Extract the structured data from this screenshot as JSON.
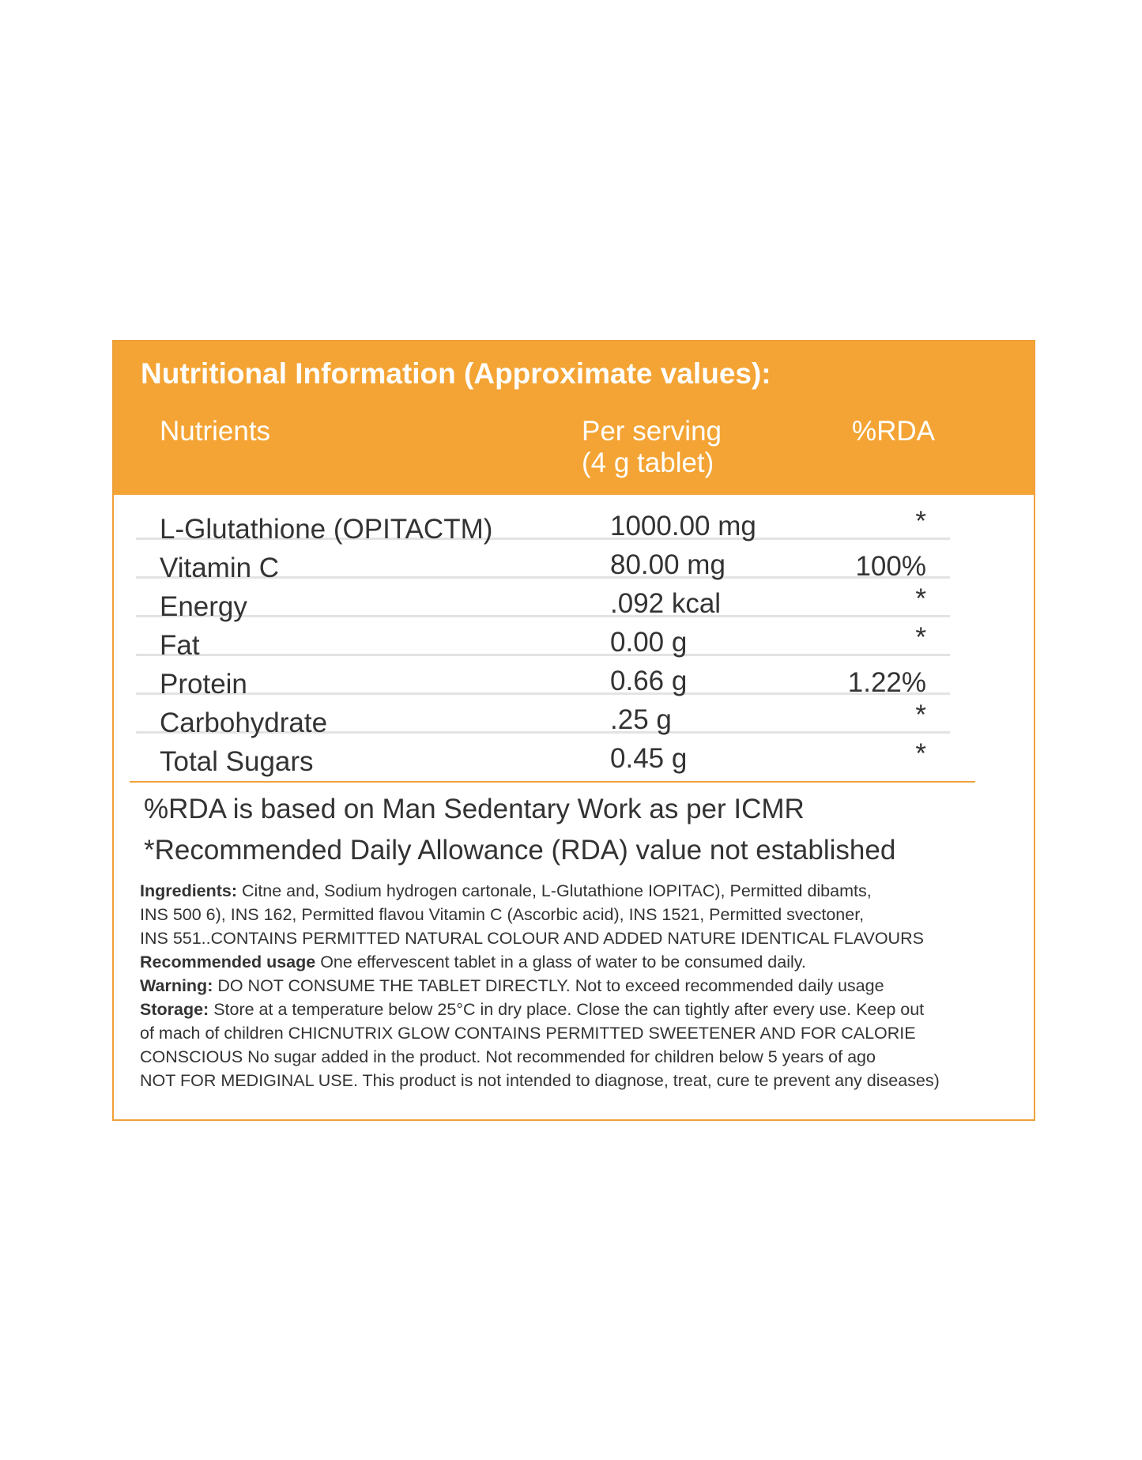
{
  "title": "Nutritional Information (Approximate values):",
  "columns": {
    "nutrients": "Nutrients",
    "per_serving_line1": "Per serving",
    "per_serving_line2": "(4 g tablet)",
    "rda": "%RDA"
  },
  "rows": [
    {
      "name": "L-Glutathione (OPITACTM)",
      "value": "1000.00 mg",
      "rda": "*"
    },
    {
      "name": "Vitamin C",
      "value": "80.00 mg",
      "rda": "100%"
    },
    {
      "name": "Energy",
      "value": ".092 kcal",
      "rda": "*"
    },
    {
      "name": "Fat",
      "value": "0.00 g",
      "rda": "*"
    },
    {
      "name": "Protein",
      "value": "0.66 g",
      "rda": "1.22%"
    },
    {
      "name": "Carbohydrate",
      "value": ".25 g",
      "rda": "*"
    },
    {
      "name": "Total Sugars",
      "value": "0.45 g",
      "rda": "*"
    }
  ],
  "notes": {
    "rda_basis": "%RDA is based on Man Sedentary Work as per ICMR",
    "rda_not_established": "*Recommended Daily Allowance (RDA) value not established"
  },
  "fine_print": {
    "ingredients_label": "Ingredients:",
    "ingredients_line1": " Citne and, Sodium hydrogen cartonale, L-Glutathione IOPITAC), Permitted dibamts,",
    "ingredients_line2": " INS 500 6), INS 162, Permitted flavou Vitamin C (Ascorbic acid), INS 1521, Permitted svectoner,",
    "ingredients_line3": "INS 551..CONTAINS PERMITTED NATURAL COLOUR AND ADDED NATURE IDENTICAL FLAVOURS",
    "usage_label": "Recommended usage",
    "usage_text": " One effervescent tablet in a glass of water to be consumed daily.",
    "warning_label": "Warning:",
    "warning_text": " DO NOT CONSUME THE TABLET DIRECTLY. Not to exceed recommended daily usage",
    "storage_label": "Storage:",
    "storage_line1": " Store at a temperature below 25°C in dry place. Close the can tightly after every use. Keep out",
    "storage_line2": "of mach of children CHICNUTRIX GLOW CONTAINS PERMITTED SWEETENER AND FOR CALORIE",
    "storage_line3": "CONSCIOUS No sugar added in the product. Not recommended for children below 5 years of ago",
    "storage_line4": "NOT FOR MEDIGINAL USE. This product is not intended to diagnose, treat, cure te prevent any diseases)"
  },
  "colors": {
    "header_orange": "#f4a434",
    "border_orange": "#f0a039",
    "row_divider": "#e3e3e3",
    "text": "#333333"
  }
}
